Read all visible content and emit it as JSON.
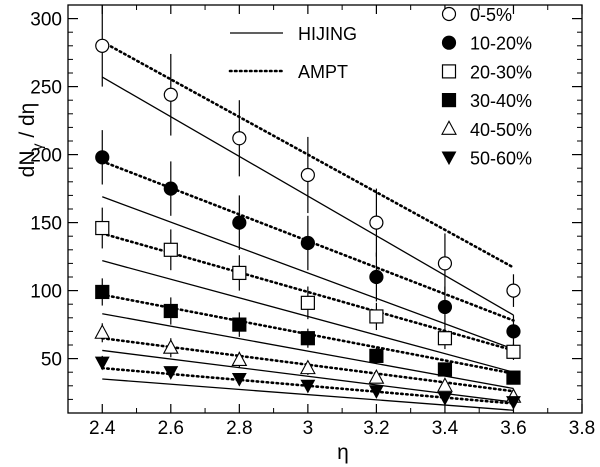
{
  "chart_data": {
    "type": "scatter",
    "xlabel": "η",
    "ylabel": "dNγ / dη",
    "ylabel_main": "dN",
    "ylabel_sub": "γ",
    "ylabel_tail": " / dη",
    "xlim": [
      2.3,
      3.8
    ],
    "ylim": [
      10,
      310
    ],
    "x_ticks": [
      2.4,
      2.6,
      2.8,
      3.0,
      3.2,
      3.4,
      3.6,
      3.8
    ],
    "x_tick_labels": [
      "2.4",
      "2.6",
      "2.8",
      "3",
      "3.2",
      "3.4",
      "3.6",
      "3.8"
    ],
    "y_ticks": [
      50,
      100,
      150,
      200,
      250,
      300
    ],
    "y_tick_labels": [
      "50",
      "100",
      "150",
      "200",
      "250",
      "300"
    ],
    "grid": false,
    "legend_position": "top-right",
    "line_legend": [
      {
        "name": "HIJING",
        "style": "solid"
      },
      {
        "name": "AMPT",
        "style": "dotted"
      }
    ],
    "series": [
      {
        "name": "0-5%",
        "marker": "circle-open",
        "x": [
          2.4,
          2.6,
          2.8,
          3.0,
          3.2,
          3.4,
          3.6
        ],
        "y": [
          280,
          244,
          212,
          185,
          150,
          120,
          100
        ],
        "err": [
          30,
          30,
          28,
          28,
          25,
          22,
          12
        ]
      },
      {
        "name": "10-20%",
        "marker": "circle-filled",
        "x": [
          2.4,
          2.6,
          2.8,
          3.0,
          3.2,
          3.4,
          3.6
        ],
        "y": [
          198,
          175,
          150,
          135,
          110,
          88,
          70
        ],
        "err": [
          20,
          20,
          20,
          20,
          18,
          15,
          12
        ]
      },
      {
        "name": "20-30%",
        "marker": "square-open",
        "x": [
          2.4,
          2.6,
          2.8,
          3.0,
          3.2,
          3.4,
          3.6
        ],
        "y": [
          146,
          130,
          113,
          91,
          81,
          65,
          55
        ],
        "err": [
          15,
          15,
          13,
          12,
          10,
          8,
          6
        ]
      },
      {
        "name": "30-40%",
        "marker": "square-filled",
        "x": [
          2.4,
          2.6,
          2.8,
          3.0,
          3.2,
          3.4,
          3.6
        ],
        "y": [
          99,
          85,
          75,
          65,
          52,
          42,
          36
        ],
        "err": [
          10,
          10,
          9,
          7,
          6,
          5,
          4
        ]
      },
      {
        "name": "40-50%",
        "marker": "triangle-up-open",
        "x": [
          2.4,
          2.6,
          2.8,
          3.0,
          3.2,
          3.4,
          3.6
        ],
        "y": [
          69,
          58,
          49,
          43,
          36,
          30,
          22
        ],
        "err": [
          7,
          7,
          6,
          5,
          4,
          3,
          3
        ]
      },
      {
        "name": "50-60%",
        "marker": "triangle-down-filled",
        "x": [
          2.4,
          2.6,
          2.8,
          3.0,
          3.2,
          3.4,
          3.6
        ],
        "y": [
          47,
          40,
          35,
          30,
          26,
          21,
          18
        ],
        "err": [
          5,
          4,
          4,
          3,
          3,
          3,
          2
        ]
      }
    ],
    "hijing_lines": [
      {
        "x": [
          2.4,
          3.6
        ],
        "y": [
          257,
          82
        ]
      },
      {
        "x": [
          2.4,
          3.6
        ],
        "y": [
          169,
          57
        ]
      },
      {
        "x": [
          2.4,
          3.6
        ],
        "y": [
          122,
          40
        ]
      },
      {
        "x": [
          2.4,
          3.6
        ],
        "y": [
          83,
          28
        ]
      },
      {
        "x": [
          2.4,
          3.6
        ],
        "y": [
          56,
          18
        ]
      },
      {
        "x": [
          2.4,
          3.6
        ],
        "y": [
          35,
          12
        ]
      }
    ],
    "ampt_lines": [
      {
        "x": [
          2.4,
          3.6
        ],
        "y": [
          283,
          117
        ]
      },
      {
        "x": [
          2.4,
          3.6
        ],
        "y": [
          195,
          78
        ]
      },
      {
        "x": [
          2.4,
          3.6
        ],
        "y": [
          142,
          56
        ]
      },
      {
        "x": [
          2.4,
          3.6
        ],
        "y": [
          97,
          39
        ]
      },
      {
        "x": [
          2.4,
          3.6
        ],
        "y": [
          65,
          26
        ]
      },
      {
        "x": [
          2.4,
          3.6
        ],
        "y": [
          43,
          17
        ]
      }
    ]
  }
}
